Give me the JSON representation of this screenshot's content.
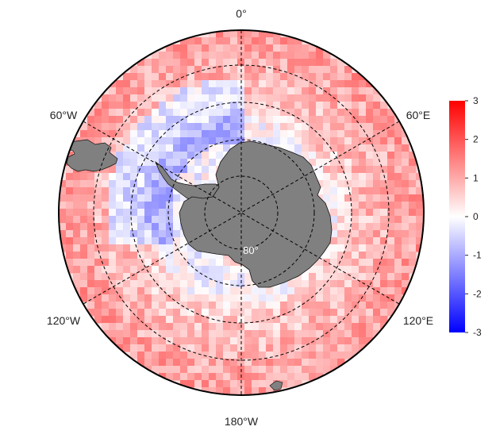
{
  "map": {
    "projection": "south-polar-stereographic",
    "longitude_labels": {
      "top": "0°",
      "upper_left": "60°W",
      "upper_right": "60°E",
      "lower_left": "120°W",
      "lower_right": "120°E",
      "bottom": "180°W"
    },
    "latitude_labels": {
      "inner": "80°"
    },
    "meridians_deg": [
      0,
      60,
      120,
      180,
      240,
      300
    ],
    "parallels_deg_south": [
      80,
      70,
      60,
      50
    ],
    "land_color": "#808080",
    "graticule_style": "dashed"
  },
  "colorbar": {
    "title": "",
    "ticks": [
      "3",
      "2",
      "1",
      "0",
      "-1",
      "-2",
      "-3"
    ],
    "range": [
      -3,
      3
    ],
    "colormap": [
      "#0000ff",
      "#ffffff",
      "#ff0000"
    ]
  }
}
